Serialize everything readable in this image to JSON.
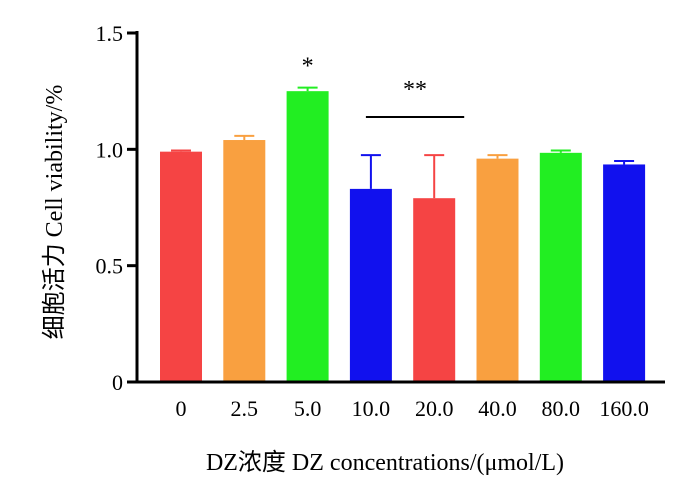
{
  "chart_data": {
    "type": "bar",
    "categories": [
      "0",
      "2.5",
      "5.0",
      "10.0",
      "20.0",
      "40.0",
      "80.0",
      "160.0"
    ],
    "values": [
      0.99,
      1.04,
      1.25,
      0.83,
      0.79,
      0.96,
      0.985,
      0.935
    ],
    "error_bars": [
      0.005,
      0.018,
      0.015,
      0.145,
      0.185,
      0.015,
      0.01,
      0.015
    ],
    "bar_colors": [
      "#f54444",
      "#f9a040",
      "#22ee22",
      "#1111ee",
      "#f54444",
      "#f9a040",
      "#22ee22",
      "#1111ee"
    ],
    "ylim": [
      0,
      1.5
    ],
    "y_ticks": [
      0,
      0.5,
      1.0,
      1.5
    ],
    "y_tick_labels": [
      "0",
      "0.5",
      "1.0",
      "1.5"
    ],
    "xlabel": "DZ浓度  DZ concentrations/(μmol/L)",
    "ylabel": "细胞活力 Cell viability/%",
    "annotations": [
      {
        "text": "*",
        "over_category": "5.0"
      },
      {
        "text": "**",
        "over_categories": [
          "10.0",
          "20.0"
        ]
      }
    ]
  }
}
